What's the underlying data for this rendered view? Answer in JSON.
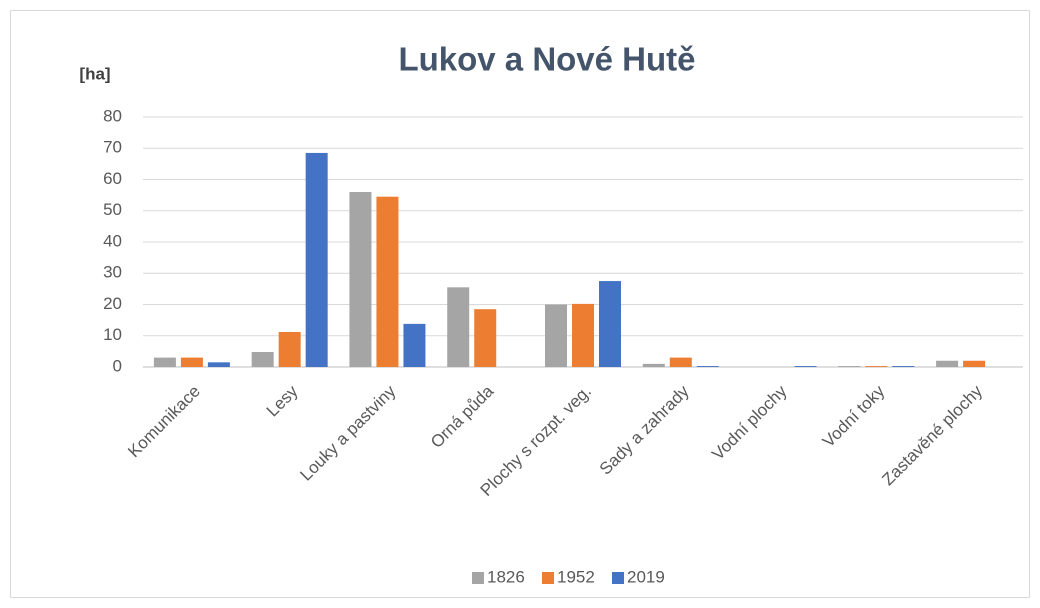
{
  "chart_data": {
    "type": "bar",
    "title": "Lukov a Nové Hutě",
    "y_label": "[ha]",
    "categories": [
      "Komunikace",
      "Lesy",
      "Louky a pastviny",
      "Orná půda",
      "Plochy s rozpt. veg.",
      "Sady a zahrady",
      "Vodní plochy",
      "Vodní toky",
      "Zastavěné plochy"
    ],
    "series": [
      {
        "name": "1826",
        "color": "#a5a5a5",
        "values": [
          3,
          4.8,
          56,
          25.5,
          20,
          1,
          0,
          0.3,
          2
        ]
      },
      {
        "name": "1952",
        "color": "#ed7d31",
        "values": [
          3,
          11.2,
          54.5,
          18.5,
          20.2,
          3,
          0,
          0.3,
          2
        ]
      },
      {
        "name": "2019",
        "color": "#4472c4",
        "values": [
          1.5,
          68.5,
          13.8,
          0,
          27.5,
          0.3,
          0.3,
          0.3,
          0
        ]
      }
    ],
    "ylim": [
      0,
      80
    ],
    "yticks": [
      0,
      10,
      20,
      30,
      40,
      50,
      60,
      70,
      80
    ],
    "grid": true,
    "legend": "bottom"
  }
}
